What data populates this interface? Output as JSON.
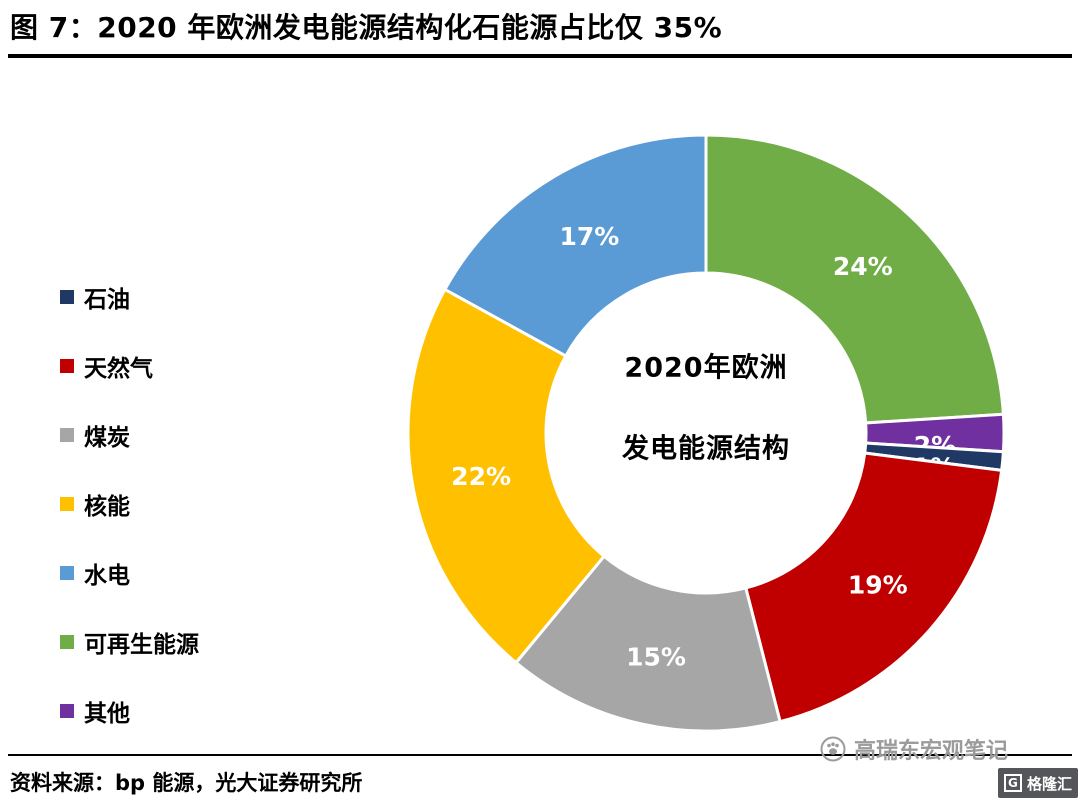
{
  "page": {
    "title": "图 7：2020 年欧洲发电能源结构化石能源占比仅 35%",
    "source_note": "资料来源：bp 能源，光大证券研究所"
  },
  "watermark": {
    "account_name": "高瑞东宏观笔记",
    "logo_text": "格隆汇",
    "logo_letter": "G"
  },
  "chart_data": {
    "type": "pie",
    "subtype": "donut",
    "center_title_lines": [
      "2020年欧洲",
      "发电能源结构"
    ],
    "legend_position": "left",
    "rotation": "clockwise-from-top",
    "legend": [
      {
        "label": "石油",
        "color": "#1F3864"
      },
      {
        "label": "天然气",
        "color": "#C00000"
      },
      {
        "label": "煤炭",
        "color": "#A6A6A6"
      },
      {
        "label": "核能",
        "color": "#FFC000"
      },
      {
        "label": "水电",
        "color": "#5B9BD5"
      },
      {
        "label": "可再生能源",
        "color": "#70AD47"
      },
      {
        "label": "其他",
        "color": "#7030A0"
      }
    ],
    "slices_clockwise_from_top": [
      {
        "label": "可再生能源",
        "value": 24,
        "data_label": "24%",
        "color": "#70AD47"
      },
      {
        "label": "其他",
        "value": 2,
        "data_label": "2%",
        "color": "#7030A0"
      },
      {
        "label": "石油",
        "value": 1,
        "data_label": "1%",
        "color": "#1F3864"
      },
      {
        "label": "天然气",
        "value": 19,
        "data_label": "19%",
        "color": "#C00000"
      },
      {
        "label": "煤炭",
        "value": 15,
        "data_label": "15%",
        "color": "#A6A6A6"
      },
      {
        "label": "核能",
        "value": 22,
        "data_label": "22%",
        "color": "#FFC000"
      },
      {
        "label": "水电",
        "value": 17,
        "data_label": "17%",
        "color": "#5B9BD5"
      }
    ]
  }
}
